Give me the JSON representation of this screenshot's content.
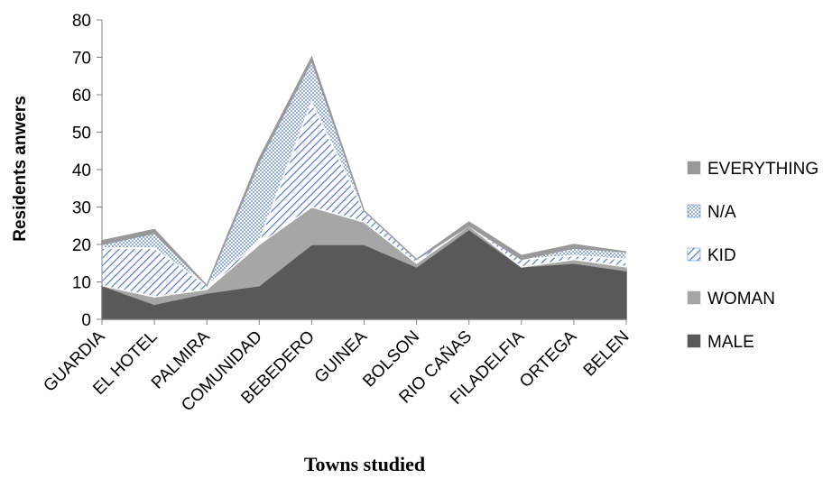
{
  "chart_data": {
    "type": "area",
    "stacked": true,
    "categories": [
      "GUARDIA",
      "EL HOTEL",
      "PALMIRA",
      "COMUNIDAD",
      "BEBEDERO",
      "GUINEA",
      "BOLSON",
      "RIO CAÑAS",
      "FILADELFIA",
      "ORTEGA",
      "BELEN"
    ],
    "series": [
      {
        "name": "MALE",
        "values": [
          9,
          4,
          7,
          9,
          20,
          20,
          14,
          24,
          14,
          15,
          13
        ],
        "color": "#595959",
        "pattern": "solid"
      },
      {
        "name": "WOMAN",
        "values": [
          0,
          2,
          1,
          11,
          10,
          6,
          1,
          1,
          0,
          1,
          1
        ],
        "color": "#a6a6a6",
        "pattern": "solid"
      },
      {
        "name": "KID",
        "values": [
          10,
          13,
          1,
          1,
          28,
          3,
          1,
          0,
          2,
          1,
          2
        ],
        "color": "#4472c4",
        "pattern": "diagonal-stripes"
      },
      {
        "name": "N/A",
        "values": [
          1,
          4,
          0,
          21,
          11,
          0,
          0,
          0,
          0,
          2,
          2
        ],
        "color": "#4472c4",
        "pattern": "dots"
      },
      {
        "name": "EVERYTHING",
        "values": [
          1,
          1,
          0,
          1,
          1,
          0,
          0,
          1,
          1,
          1,
          0
        ],
        "color": "#999999",
        "pattern": "solid"
      }
    ],
    "title": "",
    "xlabel": "Towns studied",
    "ylabel": "Residents anwers",
    "ylim": [
      0,
      80
    ],
    "yticks": [
      0,
      10,
      20,
      30,
      40,
      50,
      60,
      70,
      80
    ],
    "grid": false,
    "legend": "right"
  }
}
